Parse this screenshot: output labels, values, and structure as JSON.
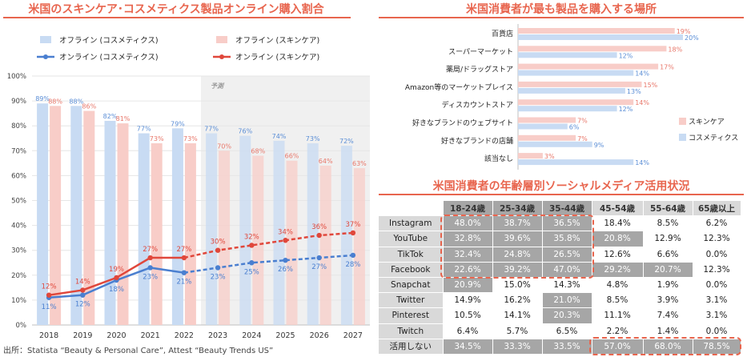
{
  "titles": {
    "left": "米国のスキンケア･コスメティクス製品オンライン購入割合",
    "right_top": "米国消費者が最も製品を購入する場所",
    "right_bottom": "米国消費者の年齢層別ソーシャルメディア活用状況"
  },
  "source_note": "出所：Statista “Beauty & Personal Care”, Attest “Beauty Trends US”",
  "colors": {
    "accent": "#e8654e",
    "cosmetics_bar": "#c8dbf3",
    "skincare_bar": "#f8cdc8",
    "cosmetics_line": "#4a7fd0",
    "skincare_line": "#e0473b",
    "forecast_bg": "#f0f0f0",
    "table_dark": "#a6a6a6",
    "table_light": "#d9d9d9"
  },
  "chart_data": [
    {
      "type": "bar",
      "title": "米国のスキンケア･コスメティクス製品オンライン購入割合",
      "categories": [
        "2018",
        "2019",
        "2020",
        "2021",
        "2022",
        "2023",
        "2024",
        "2025",
        "2026",
        "2027"
      ],
      "ylim": [
        0,
        100
      ],
      "y_ticks": [
        "0%",
        "10%",
        "20%",
        "30%",
        "40%",
        "50%",
        "60%",
        "70%",
        "80%",
        "90%",
        "100%"
      ],
      "forecast_label": "予測",
      "forecast_from": "2023",
      "legend_position": "top",
      "series": [
        {
          "name": "オフライン (コスメティクス)",
          "kind": "bar",
          "values": [
            89,
            88,
            82,
            77,
            79,
            77,
            76,
            74,
            73,
            72
          ],
          "labels": [
            "89%",
            "88%",
            "82%",
            "77%",
            "79%",
            "77%",
            "76%",
            "74%",
            "73%",
            "72%"
          ]
        },
        {
          "name": "オフライン (スキンケア)",
          "kind": "bar",
          "values": [
            88,
            86,
            81,
            73,
            73,
            70,
            68,
            66,
            64,
            63
          ],
          "labels": [
            "88%",
            "86%",
            "81%",
            "73%",
            "73%",
            "70%",
            "68%",
            "66%",
            "64%",
            "63%"
          ]
        },
        {
          "name": "オンライン (コスメティクス)",
          "kind": "line",
          "values": [
            11,
            12,
            18,
            23,
            21,
            23,
            25,
            26,
            27,
            28
          ],
          "labels": [
            "11%",
            "12%",
            "18%",
            "23%",
            "21%",
            "23%",
            "25%",
            "26%",
            "27%",
            "28%"
          ]
        },
        {
          "name": "オンライン (スキンケア)",
          "kind": "line",
          "values": [
            12,
            14,
            19,
            27,
            27,
            30,
            32,
            34,
            36,
            37
          ],
          "labels": [
            "12%",
            "14%",
            "19%",
            "27%",
            "27%",
            "30%",
            "32%",
            "34%",
            "36%",
            "37%"
          ]
        }
      ]
    },
    {
      "type": "bar",
      "orientation": "horizontal",
      "title": "米国消費者が最も製品を購入する場所",
      "categories": [
        "百貨店",
        "スーパーマーケット",
        "薬局/ドラッグストア",
        "Amazon等のマーケットプレイス",
        "ディスカウントストア",
        "好きなブランドのウェブサイト",
        "好きなブランドの店舗",
        "該当なし"
      ],
      "xlim": [
        0,
        20
      ],
      "legend_position": "right",
      "series": [
        {
          "name": "スキンケア",
          "values": [
            19,
            18,
            17,
            15,
            14,
            7,
            7,
            3
          ],
          "labels": [
            "19%",
            "18%",
            "17%",
            "15%",
            "14%",
            "7%",
            "7%",
            "3%"
          ]
        },
        {
          "name": "コスメティクス",
          "values": [
            20,
            12,
            14,
            13,
            12,
            6,
            9,
            14
          ],
          "labels": [
            "20%",
            "12%",
            "14%",
            "13%",
            "12%",
            "6%",
            "9%",
            "14%"
          ]
        }
      ]
    },
    {
      "type": "table",
      "title": "米国消費者の年齢層別ソーシャルメディア活用状況",
      "columns": [
        "18-24歳",
        "25-34歳",
        "35-44歳",
        "45-54歳",
        "55-64歳",
        "65歳以上"
      ],
      "rows": [
        {
          "label": "Instagram",
          "values": [
            "48.0%",
            "38.7%",
            "36.5%",
            "18.4%",
            "8.5%",
            "6.2%"
          ]
        },
        {
          "label": "YouTube",
          "values": [
            "32.8%",
            "39.6%",
            "35.8%",
            "20.8%",
            "12.9%",
            "12.3%"
          ]
        },
        {
          "label": "TikTok",
          "values": [
            "32.4%",
            "24.8%",
            "26.5%",
            "12.6%",
            "6.6%",
            "0.0%"
          ]
        },
        {
          "label": "Facebook",
          "values": [
            "22.6%",
            "39.2%",
            "47.0%",
            "29.2%",
            "20.7%",
            "12.3%"
          ]
        },
        {
          "label": "Snapchat",
          "values": [
            "20.9%",
            "15.0%",
            "14.3%",
            "4.8%",
            "1.9%",
            "0.0%"
          ]
        },
        {
          "label": "Twitter",
          "values": [
            "14.9%",
            "16.2%",
            "21.0%",
            "8.5%",
            "3.9%",
            "3.1%"
          ]
        },
        {
          "label": "Pinterest",
          "values": [
            "10.5%",
            "14.1%",
            "20.3%",
            "11.1%",
            "7.4%",
            "3.1%"
          ]
        },
        {
          "label": "Twitch",
          "values": [
            "6.4%",
            "5.7%",
            "6.5%",
            "2.2%",
            "1.4%",
            "0.0%"
          ]
        },
        {
          "label": "活用しない",
          "values": [
            "34.5%",
            "33.3%",
            "33.5%",
            "57.0%",
            "68.0%",
            "78.5%"
          ]
        }
      ]
    }
  ]
}
